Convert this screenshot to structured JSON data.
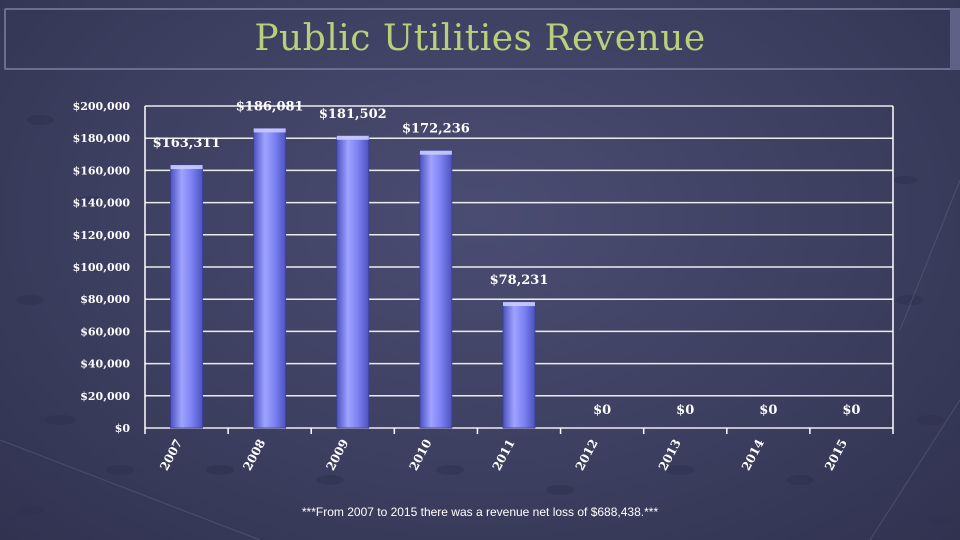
{
  "title": "Public Utilities Revenue",
  "footnote": "***From 2007 to 2015 there was a revenue net loss of $688,438.***",
  "colors": {
    "bar_top": "#b6baff",
    "bar_mid": "#7d83f2",
    "bar_dark": "#4c52c0",
    "grid": "#ffffff",
    "text": "#ffffff",
    "title": "#b9cf7a"
  },
  "chart_data": {
    "type": "bar",
    "title": "Public Utilities Revenue",
    "categories": [
      "2007",
      "2008",
      "2009",
      "2010",
      "2011",
      "2012",
      "2013",
      "2014",
      "2015"
    ],
    "values": [
      163311,
      186081,
      181502,
      172236,
      78231,
      0,
      0,
      0,
      0
    ],
    "data_labels": [
      "$163,311",
      "$186,081",
      "$181,502",
      "$172,236",
      "$78,231",
      "$0",
      "$0",
      "$0",
      "$0"
    ],
    "y_ticks": [
      0,
      20000,
      40000,
      60000,
      80000,
      100000,
      120000,
      140000,
      160000,
      180000,
      200000
    ],
    "y_tick_labels": [
      "$0",
      "$20,000",
      "$40,000",
      "$60,000",
      "$80,000",
      "$100,000",
      "$120,000",
      "$140,000",
      "$160,000",
      "$180,000",
      "$200,000"
    ],
    "ylim": [
      0,
      200000
    ],
    "xlabel": "",
    "ylabel": "",
    "grid": true
  }
}
